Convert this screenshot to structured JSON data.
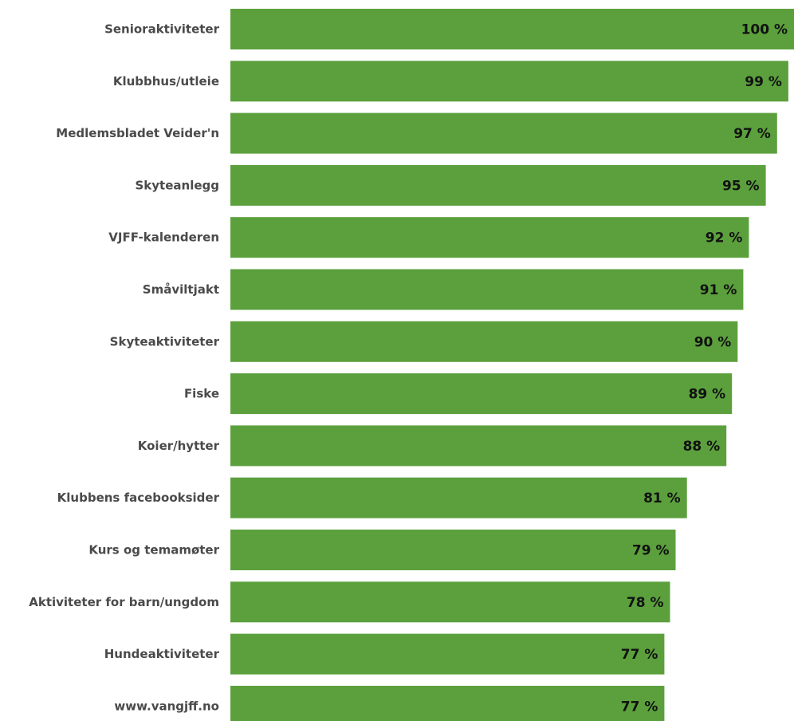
{
  "chart_data": {
    "type": "bar",
    "orientation": "horizontal",
    "categories": [
      "Senioraktiviteter",
      "Klubbhus/utleie",
      "Medlemsbladet Veider'n",
      "Skyteanlegg",
      "VJFF-kalenderen",
      "Småviltjakt",
      "Skyteaktiviteter",
      "Fiske",
      "Koier/hytter",
      "Klubbens facebooksider",
      "Kurs og temamøter",
      "Aktiviteter for barn/ungdom",
      "Hundeaktiviteter",
      "www.vangjff.no"
    ],
    "values": [
      100,
      99,
      97,
      95,
      92,
      91,
      90,
      89,
      88,
      81,
      79,
      78,
      77,
      77
    ],
    "value_labels": [
      "100 %",
      "99 %",
      "97 %",
      "95 %",
      "92 %",
      "91 %",
      "90 %",
      "89 %",
      "88 %",
      "81 %",
      "79 %",
      "78 %",
      "77 %",
      "77 %"
    ],
    "xlim": [
      0,
      100
    ],
    "grid": false,
    "bar_color": "#5ba03c",
    "category_label_color": "#4a4a4a",
    "value_label_color": "#111111"
  }
}
